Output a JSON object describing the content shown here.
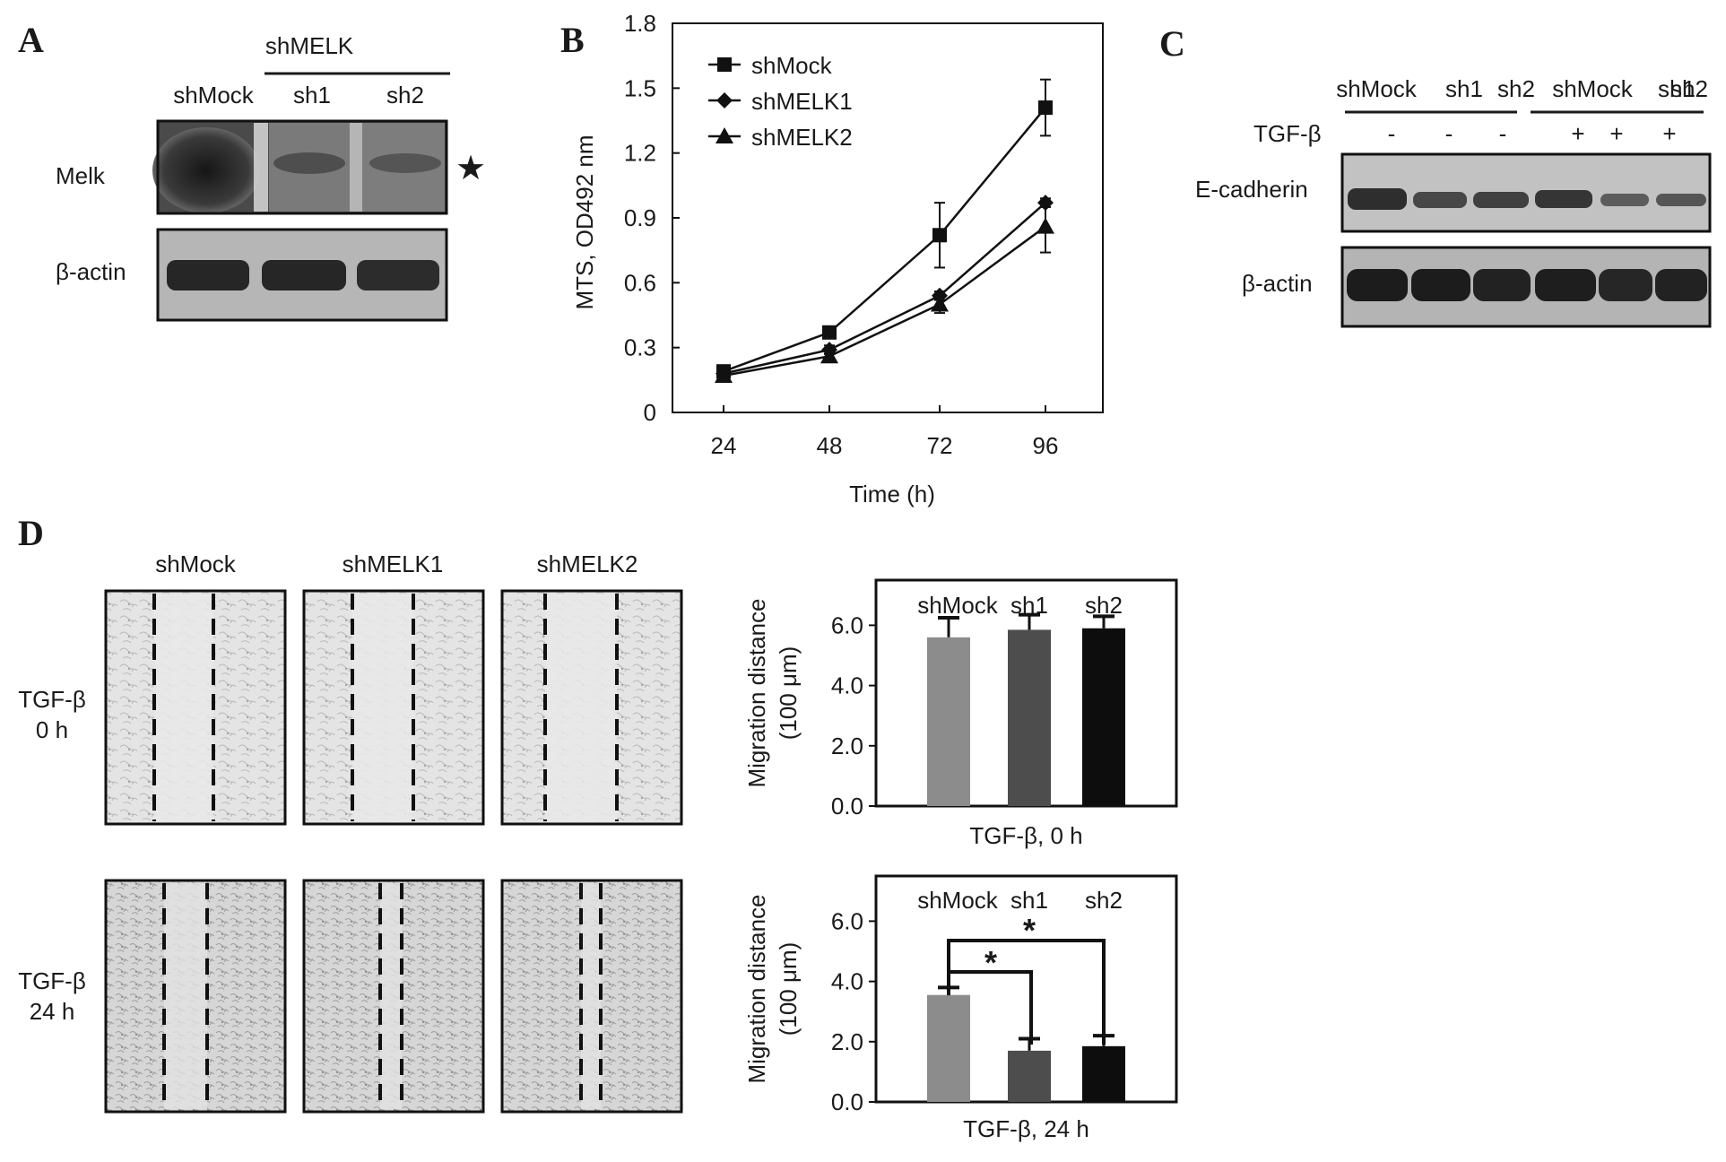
{
  "panels": {
    "A": {
      "letter": "A",
      "group_label": "shMELK",
      "lanes": [
        "shMock",
        "sh1",
        "sh2"
      ],
      "rows": [
        "Melk",
        "β-actin"
      ],
      "star": "★"
    },
    "B": {
      "letter": "B"
    },
    "C": {
      "letter": "C",
      "lanes": [
        "shMock",
        "sh1",
        "sh2",
        "shMock",
        "sh1",
        "sh2"
      ],
      "treatment_label": "TGF-β",
      "treatment_signs": [
        "-",
        "-",
        "-",
        "+",
        "+",
        "+"
      ],
      "rows": [
        "E-cadherin",
        "β-actin"
      ]
    },
    "D": {
      "letter": "D",
      "columns": [
        "shMock",
        "shMELK1",
        "shMELK2"
      ],
      "row_labels": [
        {
          "line1": "TGF-β",
          "line2": "0 h"
        },
        {
          "line1": "TGF-β",
          "line2": "24 h"
        }
      ],
      "significance_marks": [
        "*",
        "*"
      ]
    }
  },
  "chart_data": [
    {
      "id": "B",
      "type": "line",
      "xlabel": "Time (h)",
      "ylabel": "MTS, OD492 nm",
      "x": [
        24,
        48,
        72,
        96
      ],
      "ylim": [
        0,
        1.8
      ],
      "yticks": [
        "0",
        "0.3",
        "0.6",
        "0.9",
        "1.2",
        "1.5",
        "1.8"
      ],
      "legend_position": "top-left",
      "series": [
        {
          "name": "shMock",
          "marker": "square",
          "values": [
            0.19,
            0.37,
            0.82,
            1.41
          ],
          "errors": [
            0.02,
            0.02,
            0.15,
            0.13
          ]
        },
        {
          "name": "shMELK1",
          "marker": "diamond",
          "values": [
            0.18,
            0.29,
            0.54,
            0.97
          ],
          "errors": [
            0.02,
            0.02,
            0.02,
            0.02
          ]
        },
        {
          "name": "shMELK2",
          "marker": "triangle",
          "values": [
            0.17,
            0.26,
            0.5,
            0.86
          ],
          "errors": [
            0.02,
            0.02,
            0.04,
            0.12
          ]
        }
      ]
    },
    {
      "id": "D-0h",
      "type": "bar",
      "categories": [
        "shMock",
        "sh1",
        "sh2"
      ],
      "values": [
        5.6,
        5.85,
        5.9
      ],
      "errors": [
        0.65,
        0.5,
        0.4
      ],
      "colors": [
        "#8c8c8c",
        "#4d4d4d",
        "#0d0d0d"
      ],
      "xlabel": "TGF-β, 0 h",
      "ylabel_line1": "Migration distance",
      "ylabel_line2": "(100 μm)",
      "ylim": [
        0,
        7.5
      ],
      "yticks": [
        "0.0",
        "2.0",
        "4.0",
        "6.0"
      ]
    },
    {
      "id": "D-24h",
      "type": "bar",
      "categories": [
        "shMock",
        "sh1",
        "sh2"
      ],
      "values": [
        3.55,
        1.7,
        1.85
      ],
      "errors": [
        0.25,
        0.4,
        0.35
      ],
      "colors": [
        "#8c8c8c",
        "#4d4d4d",
        "#0d0d0d"
      ],
      "xlabel": "TGF-β, 24 h",
      "ylabel_line1": "Migration distance",
      "ylabel_line2": "(100 μm)",
      "ylim": [
        0,
        7.5
      ],
      "yticks": [
        "0.0",
        "2.0",
        "4.0",
        "6.0"
      ]
    }
  ]
}
